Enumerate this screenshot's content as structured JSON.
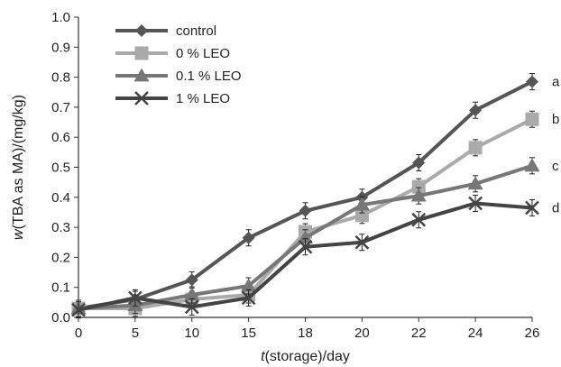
{
  "chart_data": {
    "type": "line",
    "title": "",
    "xlabel": {
      "italic": "t",
      "rest": "(storage)/day"
    },
    "ylabel": {
      "italic": "w",
      "rest": "(TBA as MA)/(mg/kg)"
    },
    "x": [
      0,
      5,
      10,
      15,
      18,
      20,
      22,
      24,
      26
    ],
    "x_ticks": [
      "0",
      "5",
      "10",
      "15",
      "18",
      "20",
      "22",
      "24",
      "26"
    ],
    "ylim": [
      0,
      1.0
    ],
    "y_ticks": [
      "0.0",
      "0.1",
      "0.2",
      "0.3",
      "0.4",
      "0.5",
      "0.6",
      "0.7",
      "0.8",
      "0.9",
      "1.0"
    ],
    "grid": false,
    "legend_position": "top-left",
    "series": [
      {
        "name": "control",
        "marker": "diamond",
        "color": "#555555",
        "values": [
          0.03,
          0.06,
          0.125,
          0.265,
          0.355,
          0.4,
          0.515,
          0.69,
          0.785
        ]
      },
      {
        "name": "0 % LEO",
        "marker": "square",
        "color": "#aaaaaa",
        "values": [
          0.03,
          0.03,
          0.06,
          0.075,
          0.285,
          0.34,
          0.435,
          0.565,
          0.66
        ]
      },
      {
        "name": "0.1 % LEO",
        "marker": "triangle",
        "color": "#777777",
        "values": [
          0.03,
          0.04,
          0.075,
          0.105,
          0.265,
          0.375,
          0.405,
          0.445,
          0.505
        ]
      },
      {
        "name": "1 % LEO",
        "marker": "x",
        "color": "#444444",
        "values": [
          0.025,
          0.065,
          0.035,
          0.065,
          0.235,
          0.25,
          0.325,
          0.38,
          0.365
        ]
      }
    ],
    "annotations": [
      "a",
      "b",
      "c",
      "d"
    ]
  }
}
